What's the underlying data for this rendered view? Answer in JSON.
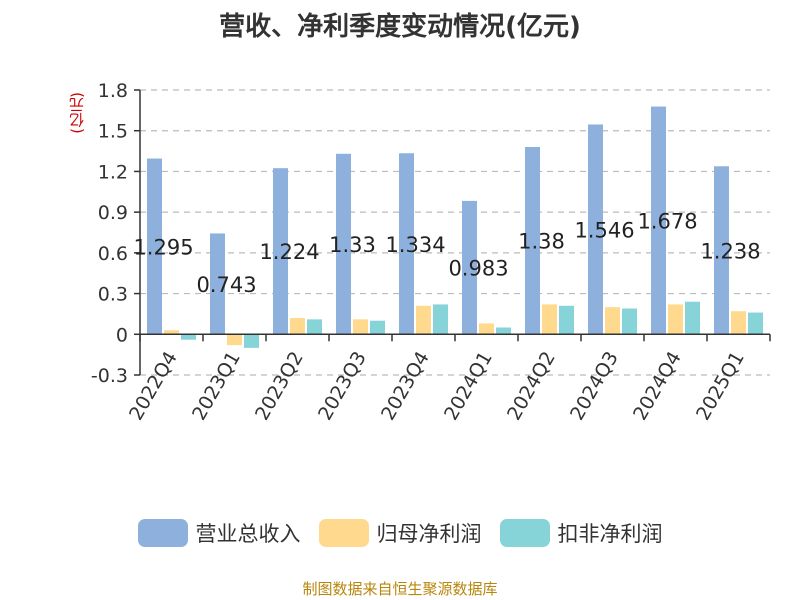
{
  "chart_data": {
    "type": "bar",
    "title": "营收、净利季度变动情况(亿元)",
    "y_unit": "(亿元)",
    "categories": [
      "2022Q4",
      "2023Q1",
      "2023Q2",
      "2023Q3",
      "2023Q4",
      "2024Q1",
      "2024Q2",
      "2024Q3",
      "2024Q4",
      "2025Q1"
    ],
    "series": [
      {
        "name": "营业总收入",
        "color": "#8eb0dc",
        "values": [
          1.295,
          0.743,
          1.224,
          1.33,
          1.334,
          0.983,
          1.38,
          1.546,
          1.678,
          1.238
        ],
        "labels": [
          "1.295",
          "0.743",
          "1.224",
          "1.33",
          "1.334",
          "0.983",
          "1.38",
          "1.546",
          "1.678",
          "1.238"
        ]
      },
      {
        "name": "归母净利润",
        "color": "#ffd98e",
        "values": [
          0.03,
          -0.08,
          0.12,
          0.11,
          0.21,
          0.08,
          0.22,
          0.2,
          0.22,
          0.17
        ]
      },
      {
        "name": "扣非净利润",
        "color": "#86d4d8",
        "values": [
          -0.04,
          -0.1,
          0.11,
          0.1,
          0.22,
          0.05,
          0.21,
          0.19,
          0.24,
          0.16
        ]
      }
    ],
    "yticks": [
      "-0.3",
      "0",
      "0.3",
      "0.6",
      "0.9",
      "1.2",
      "1.5",
      "1.8"
    ],
    "ylim": [
      -0.3,
      1.8
    ],
    "grid": true,
    "legend_position": "bottom"
  },
  "source": "制图数据来自恒生聚源数据库"
}
